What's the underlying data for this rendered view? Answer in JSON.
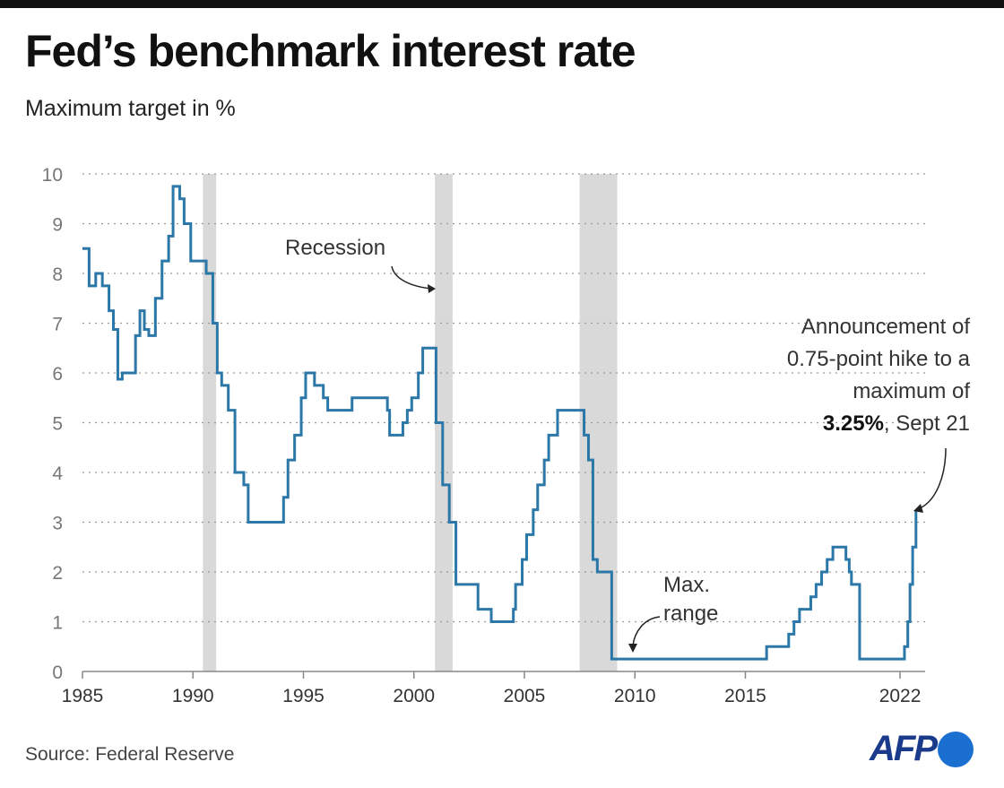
{
  "header": {
    "title": "Fed’s benchmark interest rate",
    "subtitle": "Maximum target in %"
  },
  "footer": {
    "source": "Source: Federal Reserve",
    "logo": "AFP"
  },
  "colors": {
    "line": "#2a77a8",
    "recession": "#d9d9d9",
    "grid": "#999999",
    "logo_text": "#1a3a8c",
    "logo_dot": "#1a6fd0"
  },
  "chart_data": {
    "type": "line",
    "step": true,
    "title": "Fed’s benchmark interest rate",
    "subtitle": "Maximum target in %",
    "xlim": [
      1985,
      2023.2
    ],
    "ylim": [
      0,
      10
    ],
    "grid": "horizontal dotted",
    "x_ticks": [
      1985,
      1990,
      1995,
      2000,
      2005,
      2010,
      2015,
      2022
    ],
    "x_tick_labels": [
      "1985",
      "1990",
      "1995",
      "2000",
      "2005",
      "2010",
      "2015",
      "2022"
    ],
    "y_ticks": [
      0,
      1,
      2,
      3,
      4,
      5,
      6,
      7,
      8,
      9,
      10
    ],
    "y_tick_labels": [
      "0",
      "1",
      "2",
      "3",
      "4",
      "5",
      "6",
      "7",
      "8",
      "9",
      "10"
    ],
    "recessions": [
      [
        1990.45,
        1991.05
      ],
      [
        2000.95,
        2001.75
      ],
      [
        2007.5,
        2009.2
      ]
    ],
    "series": [
      {
        "x": [
          1985.0,
          1985.3,
          1985.6,
          1985.9,
          1986.2,
          1986.4,
          1986.6,
          1986.8,
          1987.4,
          1987.6,
          1987.8,
          1988.0,
          1988.3,
          1988.6,
          1988.9,
          1989.1,
          1989.4,
          1989.6,
          1989.9,
          1990.6,
          1990.9,
          1991.1,
          1991.3,
          1991.6,
          1991.9,
          1992.3,
          1992.5,
          1994.1,
          1994.3,
          1994.6,
          1994.9,
          1995.1,
          1995.5,
          1995.9,
          1996.1,
          1997.2,
          1998.8,
          1998.9,
          1999.5,
          1999.7,
          1999.9,
          2000.2,
          2000.4,
          2001.0,
          2001.3,
          2001.6,
          2001.9,
          2002.9,
          2003.5,
          2004.5,
          2004.6,
          2004.9,
          2005.1,
          2005.4,
          2005.6,
          2005.9,
          2006.1,
          2006.5,
          2007.7,
          2007.9,
          2008.1,
          2008.3,
          2008.95,
          2015.96,
          2016.96,
          2017.2,
          2017.45,
          2017.96,
          2018.2,
          2018.45,
          2018.7,
          2018.96,
          2019.55,
          2019.7,
          2019.8,
          2020.17,
          2022.2,
          2022.35,
          2022.45,
          2022.57,
          2022.72
        ],
        "y": [
          8.5,
          7.75,
          8.0,
          7.75,
          7.25,
          6.875,
          5.875,
          6.0,
          6.75,
          7.25,
          6.875,
          6.75,
          7.5,
          8.25,
          8.75,
          9.75,
          9.5,
          9.0,
          8.25,
          8.0,
          7.0,
          6.0,
          5.75,
          5.25,
          4.0,
          3.75,
          3.0,
          3.5,
          4.25,
          4.75,
          5.5,
          6.0,
          5.75,
          5.5,
          5.25,
          5.5,
          5.25,
          4.75,
          5.0,
          5.25,
          5.5,
          6.0,
          6.5,
          5.0,
          3.75,
          3.0,
          1.75,
          1.25,
          1.0,
          1.25,
          1.75,
          2.25,
          2.75,
          3.25,
          3.75,
          4.25,
          4.75,
          5.25,
          4.75,
          4.25,
          2.25,
          2.0,
          0.25,
          0.5,
          0.75,
          1.0,
          1.25,
          1.5,
          1.75,
          2.0,
          2.25,
          2.5,
          2.25,
          2.0,
          1.75,
          0.25,
          0.5,
          1.0,
          1.75,
          2.5,
          3.25
        ]
      }
    ],
    "annotations": {
      "recession": "Recession",
      "max_range_1": "Max.",
      "max_range_2": "range",
      "announce_1": "Announcement of",
      "announce_2": "0.75-point hike to a",
      "announce_3": "maximum of",
      "announce_bold": "3.25%",
      "announce_rest": ", Sept 21"
    }
  }
}
